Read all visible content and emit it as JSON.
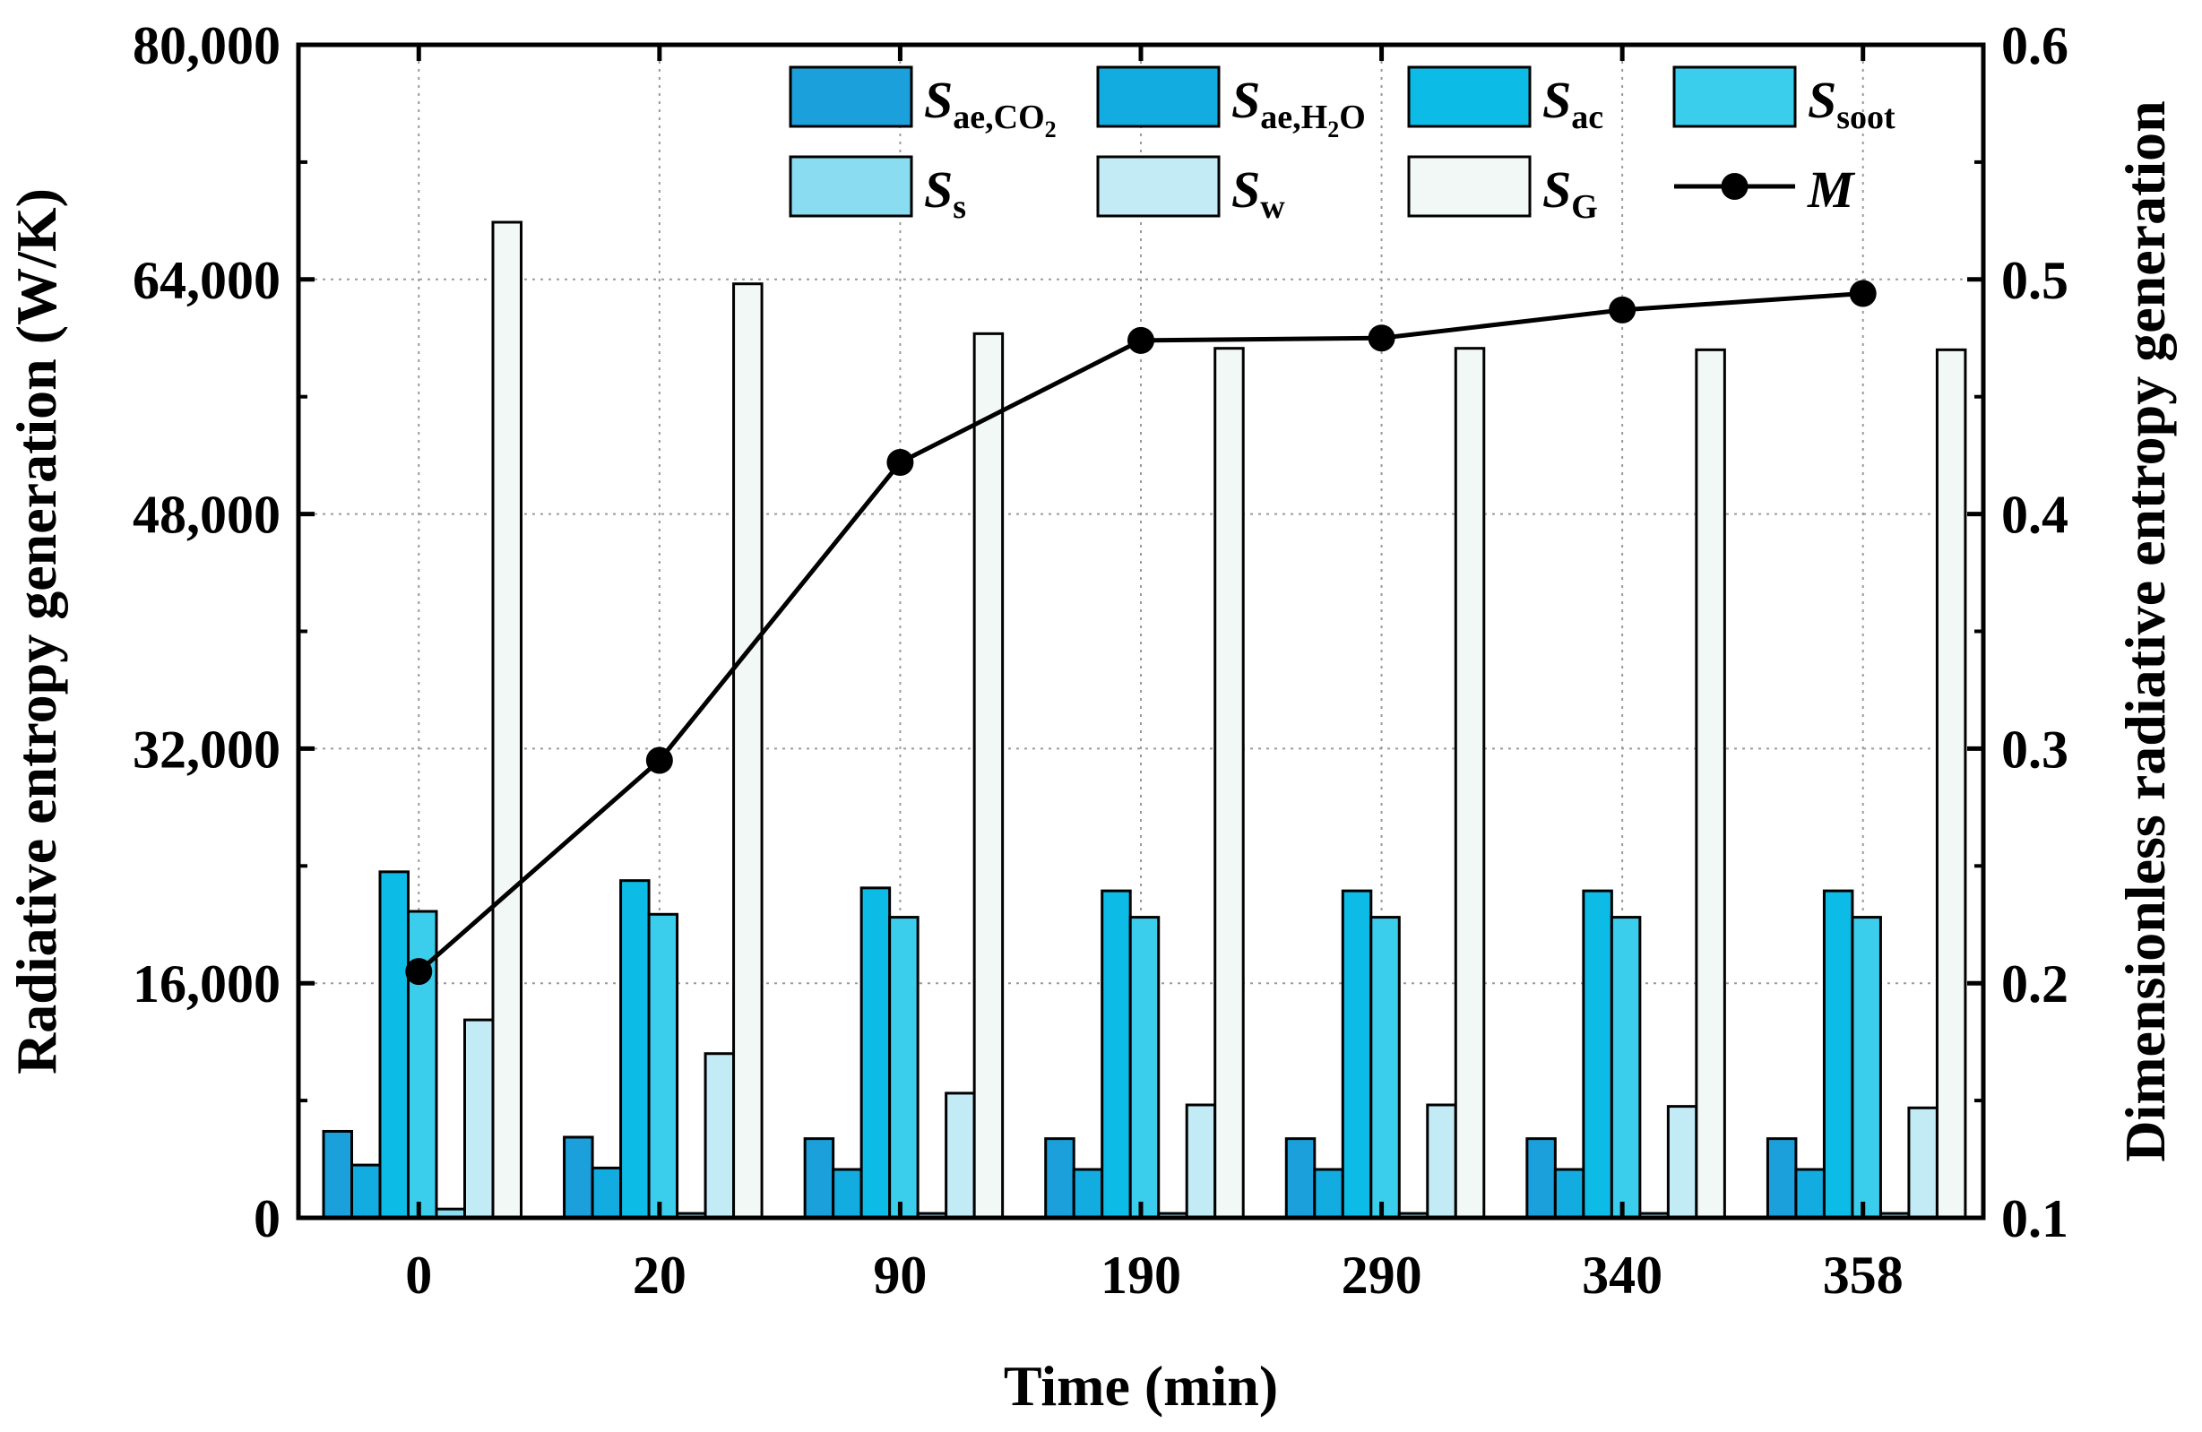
{
  "chart_data": {
    "type": "bar",
    "xlabel": "Time (min)",
    "ylabel": "Radiative entropy generation (W/K)",
    "y2label": "Dimensionless radiative entropy generation",
    "categories": [
      "0",
      "20",
      "90",
      "190",
      "290",
      "340",
      "358"
    ],
    "ylim": [
      0,
      80000
    ],
    "y2lim": [
      0.1,
      0.6
    ],
    "yticks": [
      "0",
      "16,000",
      "32,000",
      "48,000",
      "64,000",
      "80,000"
    ],
    "y2ticks": [
      "0.1",
      "0.2",
      "0.3",
      "0.4",
      "0.5",
      "0.6"
    ],
    "grid": true,
    "legend_position": "top",
    "series": [
      {
        "name": "S",
        "sub": "ae,CO",
        "sub2": "2",
        "sub_tail": "",
        "color": "#1CA0DC",
        "values": [
          5900,
          5500,
          5400,
          5400,
          5400,
          5400,
          5400
        ]
      },
      {
        "name": "S",
        "sub": "ae,H",
        "sub2": "2",
        "sub_tail": "O",
        "color": "#13ACE0",
        "values": [
          3600,
          3400,
          3300,
          3300,
          3300,
          3300,
          3300
        ]
      },
      {
        "name": "S",
        "sub": "ac",
        "sub2": "",
        "sub_tail": "",
        "color": "#0DBCE6",
        "values": [
          23600,
          23000,
          22500,
          22300,
          22300,
          22300,
          22300
        ]
      },
      {
        "name": "S",
        "sub": "soot",
        "sub2": "",
        "sub_tail": "",
        "color": "#3BCDEC",
        "values": [
          20900,
          20700,
          20500,
          20500,
          20500,
          20500,
          20500
        ]
      },
      {
        "name": "S",
        "sub": "s",
        "sub2": "",
        "sub_tail": "",
        "color": "#8ADDF1",
        "values": [
          600,
          300,
          300,
          300,
          300,
          300,
          300
        ]
      },
      {
        "name": "S",
        "sub": "w",
        "sub2": "",
        "sub_tail": "",
        "color": "#C2EBF5",
        "values": [
          13500,
          11200,
          8500,
          7700,
          7700,
          7600,
          7500
        ]
      },
      {
        "name": "S",
        "sub": "G",
        "sub2": "",
        "sub_tail": "",
        "color": "#F1F8F6",
        "values": [
          67900,
          63700,
          60300,
          59300,
          59300,
          59200,
          59200
        ]
      }
    ],
    "line_series": {
      "name": "M",
      "color": "#000000",
      "values": [
        0.205,
        0.295,
        0.422,
        0.474,
        0.475,
        0.487,
        0.494
      ]
    }
  }
}
